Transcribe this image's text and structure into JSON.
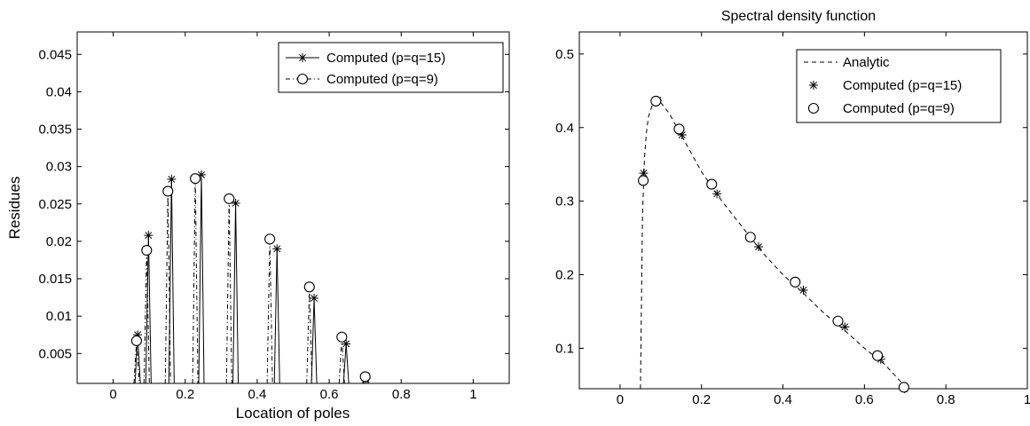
{
  "chart_data": [
    {
      "type": "line",
      "title": "",
      "xlabel": "Location of poles",
      "ylabel": "Residues",
      "xlim": [
        -0.1,
        1.1
      ],
      "ylim": [
        0.001,
        0.048
      ],
      "xticks": [
        0,
        0.2,
        0.4,
        0.6,
        0.8,
        1
      ],
      "xtick_labels": [
        "0",
        "0.2",
        "0.4",
        "0.6",
        "0.8",
        "1"
      ],
      "yticks": [
        0.005,
        0.01,
        0.015,
        0.02,
        0.025,
        0.03,
        0.035,
        0.04,
        0.045
      ],
      "ytick_labels": [
        "0.005",
        "0.01",
        "0.015",
        "0.02",
        "0.025",
        "0.03",
        "0.035",
        "0.04",
        "0.045"
      ],
      "legend_position": "top-right",
      "series": [
        {
          "name": "Computed (p=q=15)",
          "marker": "asterisk",
          "line_style": "solid",
          "x": [
            0.068,
            0.098,
            0.162,
            0.245,
            0.34,
            0.455,
            0.558,
            0.647,
            0.702
          ],
          "y": [
            0.0075,
            0.0208,
            0.0283,
            0.0289,
            0.0251,
            0.019,
            0.0124,
            0.0063,
            0.0016
          ]
        },
        {
          "name": "Computed (p=q=9)",
          "marker": "circle",
          "line_style": "dashdot",
          "x": [
            0.065,
            0.093,
            0.152,
            0.228,
            0.322,
            0.435,
            0.545,
            0.635,
            0.7
          ],
          "y": [
            0.0067,
            0.0188,
            0.0267,
            0.0284,
            0.0257,
            0.0203,
            0.0139,
            0.0072,
            0.0019
          ]
        }
      ]
    },
    {
      "type": "line",
      "title": "Spectral density function",
      "xlabel": "",
      "ylabel": "",
      "xlim": [
        -0.1,
        1.0
      ],
      "ylim": [
        0.045,
        0.53
      ],
      "xticks": [
        0,
        0.2,
        0.4,
        0.6,
        0.8,
        1
      ],
      "xtick_labels": [
        "0",
        "0.2",
        "0.4",
        "0.6",
        "0.8",
        "1"
      ],
      "yticks": [
        0.1,
        0.2,
        0.3,
        0.4,
        0.5
      ],
      "ytick_labels": [
        "0.1",
        "0.2",
        "0.3",
        "0.4",
        "0.5"
      ],
      "legend_position": "top-right",
      "series": [
        {
          "name": "Analytic",
          "marker": "none",
          "line_style": "dashed",
          "x": [
            0.05,
            0.055,
            0.06,
            0.065,
            0.07,
            0.08,
            0.09,
            0.1,
            0.12,
            0.15,
            0.2,
            0.25,
            0.3,
            0.35,
            0.4,
            0.45,
            0.5,
            0.55,
            0.6,
            0.65,
            0.7
          ],
          "y": [
            0.045,
            0.28,
            0.36,
            0.395,
            0.415,
            0.432,
            0.437,
            0.434,
            0.42,
            0.39,
            0.34,
            0.3,
            0.265,
            0.23,
            0.2,
            0.175,
            0.148,
            0.125,
            0.1,
            0.078,
            0.048
          ]
        },
        {
          "name": "Computed (p=q=15)",
          "marker": "asterisk",
          "line_style": "none",
          "x": [
            0.058,
            0.092,
            0.152,
            0.238,
            0.34,
            0.45,
            0.552,
            0.64,
            0.698
          ],
          "y": [
            0.338,
            0.437,
            0.39,
            0.31,
            0.238,
            0.179,
            0.129,
            0.085,
            0.045
          ]
        },
        {
          "name": "Computed (p=q=9)",
          "marker": "circle",
          "line_style": "none",
          "x": [
            0.057,
            0.088,
            0.145,
            0.225,
            0.32,
            0.43,
            0.535,
            0.632,
            0.697
          ],
          "y": [
            0.328,
            0.436,
            0.398,
            0.323,
            0.251,
            0.19,
            0.137,
            0.09,
            0.047
          ]
        }
      ]
    }
  ]
}
